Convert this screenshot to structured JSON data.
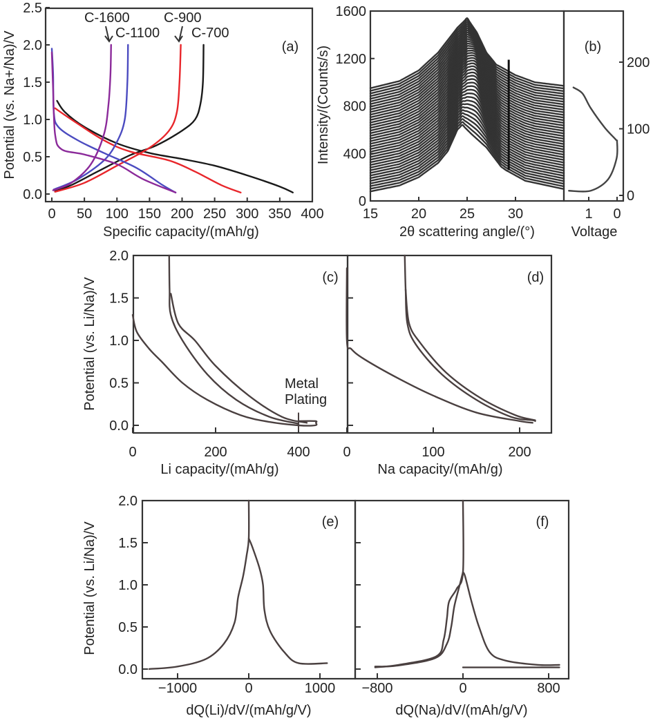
{
  "chart_data": [
    {
      "panel": "(a)",
      "type": "line",
      "xlabel": "Specific capacity/(mAh/g)",
      "ylabel": "Potential (vs. Na+/Na)/V",
      "xlim": [
        0,
        400
      ],
      "ylim": [
        0,
        2.5
      ],
      "xticks": [
        0,
        50,
        100,
        150,
        200,
        250,
        300,
        350,
        400
      ],
      "yticks": [
        "0.0",
        "0.5",
        "1.0",
        "1.5",
        "2.0",
        "2.5"
      ],
      "grid": false,
      "series": [
        {
          "name": "C-700",
          "color": "#1a1a1a",
          "discharge": [
            [
              8,
              1.25
            ],
            [
              20,
              1.1
            ],
            [
              50,
              0.9
            ],
            [
              100,
              0.68
            ],
            [
              150,
              0.55
            ],
            [
              200,
              0.47
            ],
            [
              250,
              0.38
            ],
            [
              300,
              0.25
            ],
            [
              350,
              0.1
            ],
            [
              370,
              0.02
            ]
          ],
          "charge": [
            [
              5,
              0.04
            ],
            [
              30,
              0.12
            ],
            [
              70,
              0.3
            ],
            [
              120,
              0.52
            ],
            [
              160,
              0.65
            ],
            [
              200,
              0.85
            ],
            [
              220,
              1.0
            ],
            [
              228,
              1.2
            ],
            [
              232,
              1.5
            ],
            [
              233,
              2.0
            ]
          ]
        },
        {
          "name": "C-900",
          "color": "#e8262b",
          "discharge": [
            [
              5,
              1.15
            ],
            [
              30,
              1.0
            ],
            [
              80,
              0.72
            ],
            [
              120,
              0.57
            ],
            [
              180,
              0.45
            ],
            [
              220,
              0.3
            ],
            [
              260,
              0.12
            ],
            [
              290,
              0.02
            ]
          ],
          "charge": [
            [
              5,
              0.03
            ],
            [
              50,
              0.15
            ],
            [
              100,
              0.38
            ],
            [
              150,
              0.62
            ],
            [
              180,
              0.85
            ],
            [
              192,
              1.1
            ],
            [
              196,
              1.5
            ],
            [
              198,
              2.0
            ]
          ]
        },
        {
          "name": "C-1100",
          "color": "#4b4bc0",
          "discharge": [
            [
              0,
              1.95
            ],
            [
              2,
              1.6
            ],
            [
              3,
              1.1
            ],
            [
              10,
              0.9
            ],
            [
              40,
              0.72
            ],
            [
              80,
              0.55
            ],
            [
              130,
              0.35
            ],
            [
              170,
              0.12
            ],
            [
              190,
              0.02
            ]
          ],
          "charge": [
            [
              3,
              0.06
            ],
            [
              40,
              0.2
            ],
            [
              80,
              0.45
            ],
            [
              100,
              0.7
            ],
            [
              112,
              1.0
            ],
            [
              116,
              1.5
            ],
            [
              117,
              2.0
            ]
          ]
        },
        {
          "name": "C-1600",
          "color": "#8b2a9a",
          "discharge": [
            [
              0,
              1.9
            ],
            [
              2,
              1.4
            ],
            [
              5,
              0.8
            ],
            [
              15,
              0.6
            ],
            [
              50,
              0.53
            ],
            [
              100,
              0.4
            ],
            [
              140,
              0.2
            ],
            [
              190,
              0.02
            ]
          ],
          "charge": [
            [
              2,
              0.05
            ],
            [
              30,
              0.15
            ],
            [
              60,
              0.4
            ],
            [
              80,
              0.8
            ],
            [
              87,
              1.2
            ],
            [
              90,
              1.6
            ],
            [
              91,
              2.0
            ]
          ]
        }
      ]
    },
    {
      "panel": "(b)",
      "type": "line",
      "xlabel": "2θ scattering angle/(°)",
      "ylabel": "Intensity/(Counts/s)",
      "xlim": [
        15,
        35
      ],
      "ylim": [
        0,
        1600
      ],
      "xticks": [
        15,
        20,
        25,
        30
      ],
      "yticks": [
        0,
        400,
        800,
        1200,
        1600
      ],
      "grid": false,
      "first_scan": [
        [
          15,
          80
        ],
        [
          18,
          130
        ],
        [
          20,
          200
        ],
        [
          22,
          320
        ],
        [
          23,
          420
        ],
        [
          24,
          600
        ],
        [
          24.5,
          640
        ],
        [
          25.5,
          560
        ],
        [
          27,
          450
        ],
        [
          28.5,
          290
        ],
        [
          29,
          260
        ],
        [
          31,
          170
        ],
        [
          35,
          100
        ]
      ],
      "last_scan": [
        [
          15,
          950
        ],
        [
          18,
          1010
        ],
        [
          20,
          1100
        ],
        [
          22,
          1250
        ],
        [
          24,
          1460
        ],
        [
          25,
          1540
        ],
        [
          26,
          1420
        ],
        [
          27,
          1250
        ],
        [
          28,
          1150
        ],
        [
          30,
          1060
        ],
        [
          32,
          1000
        ],
        [
          35,
          970
        ]
      ],
      "inset": {
        "xlabel": "Voltage",
        "xticks": [
          1,
          0
        ],
        "yticks": [
          0,
          100,
          200
        ],
        "curve": [
          [
            1.54,
            162
          ],
          [
            1.22,
            153
          ],
          [
            0.93,
            131
          ],
          [
            0.44,
            102
          ],
          [
            0.05,
            84
          ],
          [
            0,
            80
          ],
          [
            0.02,
            55
          ],
          [
            0.32,
            24
          ],
          [
            0.93,
            7
          ],
          [
            1.7,
            7
          ]
        ]
      }
    },
    {
      "panel": "(c)",
      "type": "line",
      "xlabel": "Li capacity/(mAh/g)",
      "ylabel": "Potential (vs. Li/Na)/V",
      "xlim": [
        0,
        450
      ],
      "ylim": [
        -0.06,
        2.0
      ],
      "xticks": [
        0,
        200,
        400
      ],
      "yticks": [
        "0.0",
        "0.5",
        "1.0",
        "1.5",
        "2.0"
      ],
      "annotation": [
        "Metal",
        "Plating"
      ],
      "series": [
        [
          [
            0,
            1.3
          ],
          [
            10,
            1.1
          ],
          [
            40,
            0.9
          ],
          [
            70,
            0.75
          ],
          [
            120,
            0.5
          ],
          [
            180,
            0.3
          ],
          [
            260,
            0.12
          ],
          [
            330,
            0.04
          ],
          [
            400,
            0.0
          ],
          [
            440,
            0.0
          ],
          [
            442,
            0.03
          ],
          [
            440,
            0.05
          ],
          [
            400,
            0.05
          ]
        ],
        [
          [
            88,
            2.0
          ],
          [
            89,
            1.6
          ],
          [
            92,
            1.3
          ],
          [
            120,
            1.0
          ],
          [
            180,
            0.6
          ],
          [
            250,
            0.3
          ],
          [
            330,
            0.1
          ],
          [
            400,
            0.02
          ]
        ],
        [
          [
            92,
            1.55
          ],
          [
            110,
            1.2
          ],
          [
            150,
            1.0
          ],
          [
            200,
            0.7
          ],
          [
            280,
            0.35
          ],
          [
            360,
            0.1
          ],
          [
            420,
            0.03
          ]
        ]
      ]
    },
    {
      "panel": "(d)",
      "type": "line",
      "xlabel": "Na capacity/(mAh/g)",
      "xlim": [
        0,
        237
      ],
      "ylim": [
        -0.06,
        2.0
      ],
      "xticks": [
        0,
        100,
        200
      ],
      "series": [
        [
          [
            0,
            1.85
          ],
          [
            0,
            1.0
          ],
          [
            5,
            0.9
          ],
          [
            20,
            0.78
          ],
          [
            60,
            0.55
          ],
          [
            100,
            0.35
          ],
          [
            150,
            0.15
          ],
          [
            200,
            0.05
          ],
          [
            215,
            0.03
          ]
        ],
        [
          [
            67,
            2.0
          ],
          [
            68,
            1.6
          ],
          [
            70,
            1.2
          ],
          [
            80,
            0.95
          ],
          [
            110,
            0.6
          ],
          [
            150,
            0.3
          ],
          [
            190,
            0.1
          ],
          [
            215,
            0.06
          ],
          [
            218,
            0.05
          ]
        ],
        [
          [
            68,
            1.6
          ],
          [
            72,
            1.2
          ],
          [
            85,
            0.97
          ],
          [
            115,
            0.62
          ],
          [
            155,
            0.32
          ],
          [
            195,
            0.12
          ],
          [
            218,
            0.06
          ]
        ]
      ]
    },
    {
      "panel": "(e)",
      "type": "line",
      "xlabel": "dQ(Li)/dV/(mAh/g/V)",
      "ylabel": "Potential (vs. Li/Na)/V",
      "xlim": [
        -1500,
        1500
      ],
      "ylim": [
        -0.1,
        2.0
      ],
      "xticks": [
        "−1000",
        "0",
        "1000"
      ],
      "yticks": [
        "0.0",
        "0.5",
        "1.0",
        "1.5",
        "2.0"
      ],
      "series": [
        [
          [
            0,
            2.0
          ],
          [
            0,
            1.55
          ],
          [
            -30,
            1.35
          ],
          [
            -80,
            1.1
          ],
          [
            -150,
            0.85
          ],
          [
            -200,
            0.55
          ],
          [
            -350,
            0.3
          ],
          [
            -600,
            0.12
          ],
          [
            -1000,
            0.03
          ],
          [
            -1400,
            0.0
          ]
        ],
        [
          [
            0,
            1.55
          ],
          [
            50,
            1.45
          ],
          [
            150,
            1.2
          ],
          [
            200,
            1.0
          ],
          [
            220,
            0.7
          ],
          [
            300,
            0.45
          ],
          [
            500,
            0.2
          ],
          [
            700,
            0.07
          ],
          [
            1100,
            0.07
          ]
        ]
      ]
    },
    {
      "panel": "(f)",
      "type": "line",
      "xlabel": "dQ(Na)/dV/(mAh/g/V)",
      "xlim": [
        -800,
        1000
      ],
      "ylim": [
        -0.1,
        2.0
      ],
      "xticks": [
        "−800",
        "0",
        "800"
      ],
      "series": [
        [
          [
            0,
            2.0
          ],
          [
            0,
            1.15
          ],
          [
            -60,
            0.95
          ],
          [
            -130,
            0.8
          ],
          [
            -150,
            0.6
          ],
          [
            -180,
            0.35
          ],
          [
            -250,
            0.15
          ],
          [
            -600,
            0.05
          ],
          [
            -820,
            0.02
          ]
        ],
        [
          [
            0,
            1.15
          ],
          [
            -30,
            1.0
          ],
          [
            -80,
            0.75
          ],
          [
            -110,
            0.5
          ],
          [
            -150,
            0.3
          ],
          [
            -260,
            0.13
          ],
          [
            -620,
            0.04
          ],
          [
            -820,
            0.03
          ]
        ],
        [
          [
            0,
            1.15
          ],
          [
            20,
            1.1
          ],
          [
            80,
            0.8
          ],
          [
            150,
            0.5
          ],
          [
            250,
            0.2
          ],
          [
            400,
            0.1
          ],
          [
            700,
            0.05
          ],
          [
            900,
            0.05
          ]
        ],
        [
          [
            0,
            0.02
          ],
          [
            900,
            0.02
          ]
        ]
      ]
    }
  ]
}
